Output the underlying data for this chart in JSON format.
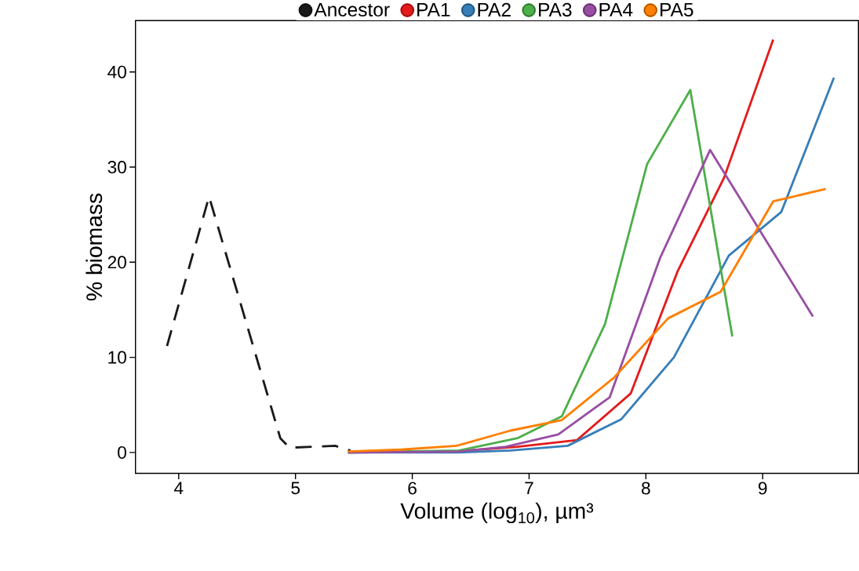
{
  "chart_data": {
    "type": "line",
    "xlabel": "Volume (log$_{10}$), µm³",
    "ylabel": "% biomass",
    "xlim": [
      3.63,
      9.82
    ],
    "ylim": [
      -2.2,
      45.4
    ],
    "xticks": [
      4,
      5,
      6,
      7,
      8,
      9
    ],
    "yticks": [
      0,
      10,
      20,
      30,
      40
    ],
    "legend": "top",
    "marker": "none",
    "line_style": "solid",
    "series": [
      {
        "name": "Ancestor",
        "color": "#1a1a1a",
        "line_style": "dashed",
        "x": [
          3.9,
          4.26,
          4.87,
          4.95,
          5.34,
          5.47
        ],
        "values": [
          11.2,
          26.9,
          1.5,
          0.5,
          0.7,
          0.2
        ]
      },
      {
        "name": "PA1",
        "color": "#e41a1c",
        "x": [
          5.45,
          6.36,
          6.9,
          7.41,
          7.87,
          8.27,
          8.67,
          9.09
        ],
        "values": [
          0,
          0.1,
          0.6,
          1.3,
          6.2,
          19.0,
          28.9,
          43.4
        ]
      },
      {
        "name": "PA2",
        "color": "#377eb8",
        "x": [
          5.45,
          6.4,
          6.84,
          7.33,
          7.79,
          8.24,
          8.71,
          9.16,
          9.61
        ],
        "values": [
          0,
          0,
          0.2,
          0.7,
          3.5,
          10.0,
          20.7,
          25.3,
          39.4
        ]
      },
      {
        "name": "PA3",
        "color": "#4daf4a",
        "x": [
          5.45,
          6.4,
          6.9,
          7.28,
          7.65,
          8.01,
          8.38,
          8.74
        ],
        "values": [
          0,
          0.2,
          1.5,
          3.8,
          13.5,
          30.3,
          38.1,
          12.2
        ]
      },
      {
        "name": "PA4",
        "color": "#984ea3",
        "x": [
          5.45,
          6.4,
          6.8,
          7.25,
          7.69,
          8.12,
          8.55,
          9.43
        ],
        "values": [
          0,
          0.1,
          0.6,
          1.9,
          5.8,
          20.4,
          31.8,
          14.3
        ]
      },
      {
        "name": "PA5",
        "color": "#ff7f00",
        "x": [
          5.45,
          5.9,
          6.38,
          6.84,
          7.28,
          7.73,
          8.19,
          8.64,
          9.09,
          9.54
        ],
        "values": [
          0.1,
          0.3,
          0.7,
          2.3,
          3.4,
          7.9,
          14.1,
          16.9,
          26.4,
          27.7
        ]
      }
    ]
  }
}
